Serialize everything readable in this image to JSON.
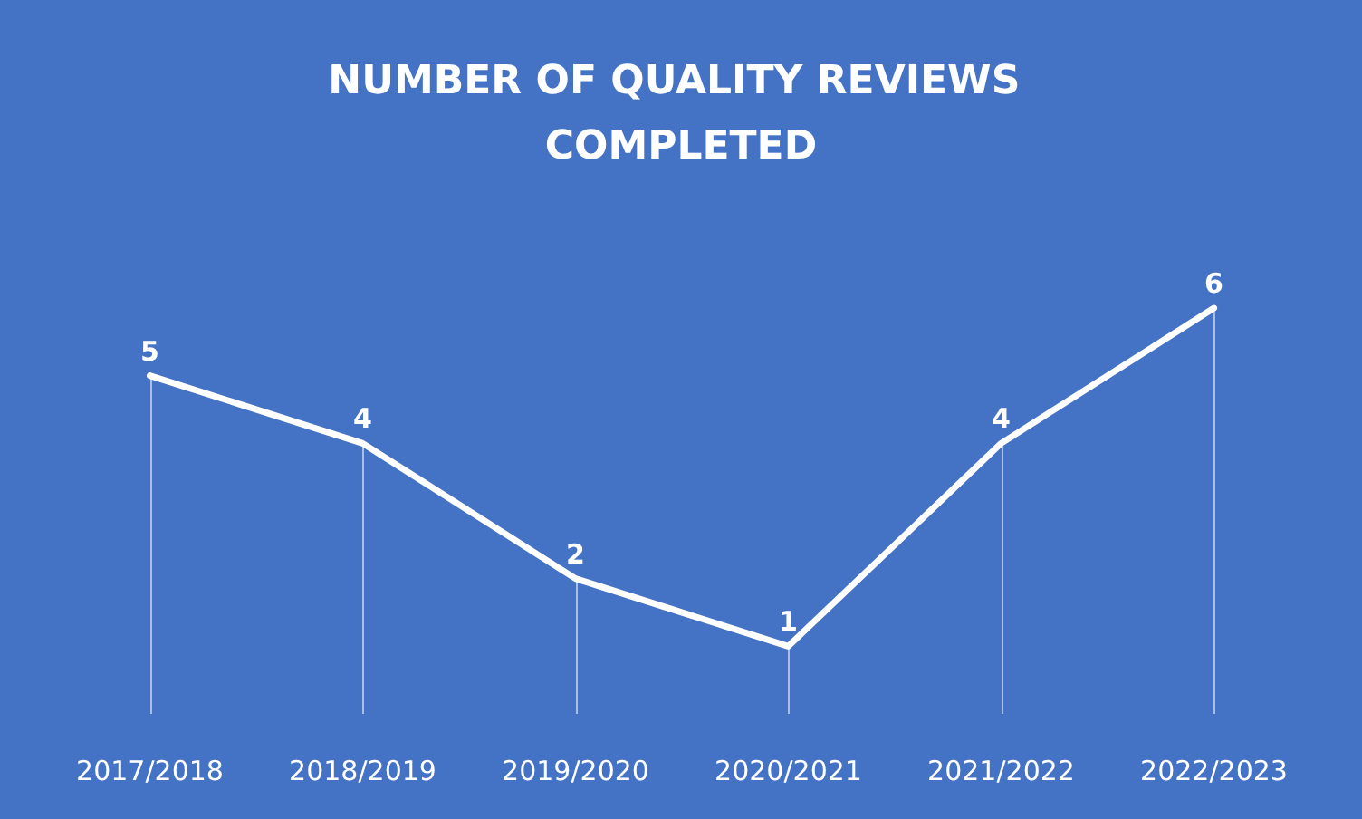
{
  "chart_data": {
    "type": "line",
    "title": "NUMBER OF QUALITY REVIEWS COMPLETED",
    "categories": [
      "2017/2018",
      "2018/2019",
      "2019/2020",
      "2020/2021",
      "2021/2022",
      "2022/2023"
    ],
    "series": [
      {
        "color": "#ffffff",
        "values": [
          5,
          4,
          2,
          1,
          4,
          6
        ]
      }
    ],
    "data_labels": true,
    "grid": "x",
    "marker": "none",
    "line_style": "solid"
  }
}
